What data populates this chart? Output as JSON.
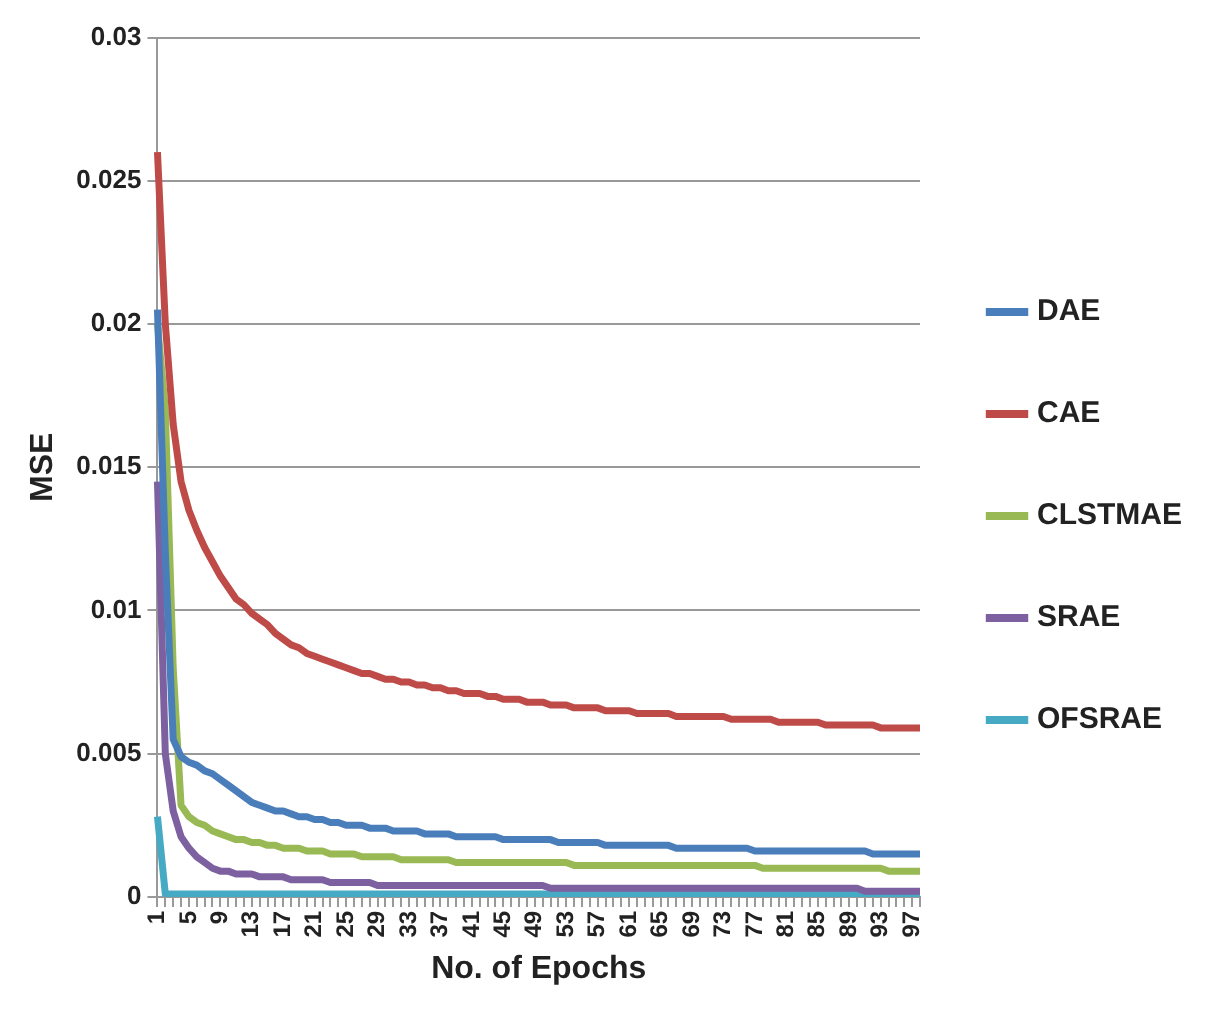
{
  "chart_data": {
    "type": "line",
    "xlabel": "No. of Epochs",
    "ylabel": "MSE",
    "categories": [
      "1",
      null,
      null,
      null,
      "5",
      null,
      null,
      null,
      "9",
      null,
      null,
      null,
      "13",
      null,
      null,
      null,
      "17",
      null,
      null,
      null,
      "21",
      null,
      null,
      null,
      "25",
      null,
      null,
      null,
      "29",
      null,
      null,
      null,
      "33",
      null,
      null,
      null,
      "37",
      null,
      null,
      null,
      "41",
      null,
      null,
      null,
      "45",
      null,
      null,
      null,
      "49",
      null,
      null,
      null,
      "53",
      null,
      null,
      null,
      "57",
      null,
      null,
      null,
      "61",
      null,
      null,
      null,
      "65",
      null,
      null,
      null,
      "69",
      null,
      null,
      null,
      "73",
      null,
      null,
      null,
      "77",
      null,
      null,
      null,
      "81",
      null,
      null,
      null,
      "85",
      null,
      null,
      null,
      "89",
      null,
      null,
      null,
      "93",
      null,
      null,
      null,
      "97",
      null
    ],
    "ylim": [
      0,
      0.03
    ],
    "yticks": [
      0,
      0.005,
      0.01,
      0.015,
      0.02,
      0.025,
      0.03
    ],
    "grid": "y",
    "legend": "right",
    "marker": "none",
    "line_style": "solid",
    "series": [
      {
        "name": "DAE",
        "color": "#4a7ebb",
        "values": [
          0.0205,
          0.012,
          0.0055,
          0.0049,
          0.0047,
          0.0046,
          0.0044,
          0.0043,
          0.0041,
          0.0039,
          0.0037,
          0.0035,
          0.0033,
          0.0032,
          0.0031,
          0.003,
          0.003,
          0.0029,
          0.0028,
          0.0028,
          0.0027,
          0.0027,
          0.0026,
          0.0026,
          0.0025,
          0.0025,
          0.0025,
          0.0024,
          0.0024,
          0.0024,
          0.0023,
          0.0023,
          0.0023,
          0.0023,
          0.0022,
          0.0022,
          0.0022,
          0.0022,
          0.0021,
          0.0021,
          0.0021,
          0.0021,
          0.0021,
          0.0021,
          0.002,
          0.002,
          0.002,
          0.002,
          0.002,
          0.002,
          0.002,
          0.0019,
          0.0019,
          0.0019,
          0.0019,
          0.0019,
          0.0019,
          0.0018,
          0.0018,
          0.0018,
          0.0018,
          0.0018,
          0.0018,
          0.0018,
          0.0018,
          0.0018,
          0.0017,
          0.0017,
          0.0017,
          0.0017,
          0.0017,
          0.0017,
          0.0017,
          0.0017,
          0.0017,
          0.0017,
          0.0016,
          0.0016,
          0.0016,
          0.0016,
          0.0016,
          0.0016,
          0.0016,
          0.0016,
          0.0016,
          0.0016,
          0.0016,
          0.0016,
          0.0016,
          0.0016,
          0.0016,
          0.0015,
          0.0015,
          0.0015,
          0.0015,
          0.0015,
          0.0015,
          0.0015
        ]
      },
      {
        "name": "CAE",
        "color": "#be4b48",
        "values": [
          0.026,
          0.02,
          0.0165,
          0.0145,
          0.0135,
          0.0128,
          0.0122,
          0.0117,
          0.0112,
          0.0108,
          0.0104,
          0.0102,
          0.0099,
          0.0097,
          0.0095,
          0.0092,
          0.009,
          0.0088,
          0.0087,
          0.0085,
          0.0084,
          0.0083,
          0.0082,
          0.0081,
          0.008,
          0.0079,
          0.0078,
          0.0078,
          0.0077,
          0.0076,
          0.0076,
          0.0075,
          0.0075,
          0.0074,
          0.0074,
          0.0073,
          0.0073,
          0.0072,
          0.0072,
          0.0071,
          0.0071,
          0.0071,
          0.007,
          0.007,
          0.0069,
          0.0069,
          0.0069,
          0.0068,
          0.0068,
          0.0068,
          0.0067,
          0.0067,
          0.0067,
          0.0066,
          0.0066,
          0.0066,
          0.0066,
          0.0065,
          0.0065,
          0.0065,
          0.0065,
          0.0064,
          0.0064,
          0.0064,
          0.0064,
          0.0064,
          0.0063,
          0.0063,
          0.0063,
          0.0063,
          0.0063,
          0.0063,
          0.0063,
          0.0062,
          0.0062,
          0.0062,
          0.0062,
          0.0062,
          0.0062,
          0.0061,
          0.0061,
          0.0061,
          0.0061,
          0.0061,
          0.0061,
          0.006,
          0.006,
          0.006,
          0.006,
          0.006,
          0.006,
          0.006,
          0.0059,
          0.0059,
          0.0059,
          0.0059,
          0.0059,
          0.0059
        ]
      },
      {
        "name": "CLSTMAE",
        "color": "#98b954",
        "values": [
          0.02,
          0.017,
          0.008,
          0.0032,
          0.0028,
          0.0026,
          0.0025,
          0.0023,
          0.0022,
          0.0021,
          0.002,
          0.002,
          0.0019,
          0.0019,
          0.0018,
          0.0018,
          0.0017,
          0.0017,
          0.0017,
          0.0016,
          0.0016,
          0.0016,
          0.0015,
          0.0015,
          0.0015,
          0.0015,
          0.0014,
          0.0014,
          0.0014,
          0.0014,
          0.0014,
          0.0013,
          0.0013,
          0.0013,
          0.0013,
          0.0013,
          0.0013,
          0.0013,
          0.0012,
          0.0012,
          0.0012,
          0.0012,
          0.0012,
          0.0012,
          0.0012,
          0.0012,
          0.0012,
          0.0012,
          0.0012,
          0.0012,
          0.0012,
          0.0012,
          0.0012,
          0.0011,
          0.0011,
          0.0011,
          0.0011,
          0.0011,
          0.0011,
          0.0011,
          0.0011,
          0.0011,
          0.0011,
          0.0011,
          0.0011,
          0.0011,
          0.0011,
          0.0011,
          0.0011,
          0.0011,
          0.0011,
          0.0011,
          0.0011,
          0.0011,
          0.0011,
          0.0011,
          0.0011,
          0.001,
          0.001,
          0.001,
          0.001,
          0.001,
          0.001,
          0.001,
          0.001,
          0.001,
          0.001,
          0.001,
          0.001,
          0.001,
          0.001,
          0.001,
          0.001,
          0.0009,
          0.0009,
          0.0009,
          0.0009,
          0.0009
        ]
      },
      {
        "name": "SRAE",
        "color": "#7d60a0",
        "values": [
          0.0145,
          0.005,
          0.003,
          0.0021,
          0.0017,
          0.0014,
          0.0012,
          0.001,
          0.0009,
          0.0009,
          0.0008,
          0.0008,
          0.0008,
          0.0007,
          0.0007,
          0.0007,
          0.0007,
          0.0006,
          0.0006,
          0.0006,
          0.0006,
          0.0006,
          0.0005,
          0.0005,
          0.0005,
          0.0005,
          0.0005,
          0.0005,
          0.0004,
          0.0004,
          0.0004,
          0.0004,
          0.0004,
          0.0004,
          0.0004,
          0.0004,
          0.0004,
          0.0004,
          0.0004,
          0.0004,
          0.0004,
          0.0004,
          0.0004,
          0.0004,
          0.0004,
          0.0004,
          0.0004,
          0.0004,
          0.0004,
          0.0004,
          0.0003,
          0.0003,
          0.0003,
          0.0003,
          0.0003,
          0.0003,
          0.0003,
          0.0003,
          0.0003,
          0.0003,
          0.0003,
          0.0003,
          0.0003,
          0.0003,
          0.0003,
          0.0003,
          0.0003,
          0.0003,
          0.0003,
          0.0003,
          0.0003,
          0.0003,
          0.0003,
          0.0003,
          0.0003,
          0.0003,
          0.0003,
          0.0003,
          0.0003,
          0.0003,
          0.0003,
          0.0003,
          0.0003,
          0.0003,
          0.0003,
          0.0003,
          0.0003,
          0.0003,
          0.0003,
          0.0003,
          0.0002,
          0.0002,
          0.0002,
          0.0002,
          0.0002,
          0.0002,
          0.0002,
          0.0002
        ]
      },
      {
        "name": "OFSRAE",
        "color": "#46aac5",
        "values": [
          0.0028,
          0.0001,
          0.0001,
          0.0001,
          0.0001,
          0.0001,
          0.0001,
          0.0001,
          0.0001,
          0.0001,
          0.0001,
          0.0001,
          0.0001,
          0.0001,
          0.0001,
          0.0001,
          0.0001,
          0.0001,
          0.0001,
          0.0001,
          0.0001,
          0.0001,
          0.0001,
          0.0001,
          0.0001,
          0.0001,
          0.0001,
          0.0001,
          0.0001,
          0.0001,
          0.0001,
          0.0001,
          0.0001,
          0.0001,
          0.0001,
          0.0001,
          0.0001,
          0.0001,
          0.0001,
          0.0001,
          0.0001,
          0.0001,
          0.0001,
          0.0001,
          0.0001,
          0.0001,
          0.0001,
          0.0001,
          0.0001,
          0.0001,
          0.0001,
          0.0001,
          0.0001,
          0.0001,
          0.0001,
          0.0001,
          0.0001,
          0.0001,
          0.0001,
          0.0001,
          0.0001,
          0.0001,
          0.0001,
          0.0001,
          0.0001,
          0.0001,
          0.0001,
          0.0001,
          0.0001,
          0.0001,
          0.0001,
          0.0001,
          0.0001,
          0.0001,
          0.0001,
          0.0001,
          0.0001,
          0.0001,
          0.0001,
          0.0001,
          0.0001,
          0.0001,
          0.0001,
          0.0001,
          0.0001,
          0.0001,
          0.0001,
          0.0001,
          0.0001,
          0.0001,
          0.0001,
          0.0001,
          0.0001,
          0.0001,
          0.0001,
          0.0001,
          0.0001,
          0.0001
        ]
      }
    ]
  }
}
